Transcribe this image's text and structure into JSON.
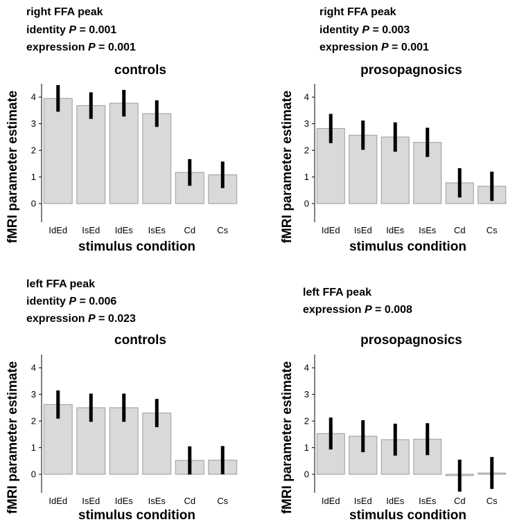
{
  "panels": [
    {
      "stats": [
        {
          "text": "right FFA peak",
          "label": "",
          "value": ""
        },
        {
          "text": "",
          "label": "identity",
          "value": " = 0.001"
        },
        {
          "text": "",
          "label": "expression",
          "value": " = 0.001"
        }
      ]
    },
    {
      "stats": [
        {
          "text": "right FFA peak",
          "label": "",
          "value": ""
        },
        {
          "text": "",
          "label": "identity",
          "value": " = 0.003"
        },
        {
          "text": "",
          "label": "expression",
          "value": " = 0.001"
        }
      ]
    },
    {
      "stats": [
        {
          "text": "left FFA peak",
          "label": "",
          "value": ""
        },
        {
          "text": "",
          "label": "identity",
          "value": " = 0.006"
        },
        {
          "text": "",
          "label": "expression",
          "value": " = 0.023"
        }
      ]
    },
    {
      "stats": [
        {
          "text": "left FFA peak",
          "label": "",
          "value": ""
        },
        {
          "text": "",
          "label": "expression",
          "value": " = 0.008"
        }
      ]
    }
  ],
  "p_symbol": "P",
  "chart_data": [
    {
      "type": "bar",
      "title": "controls",
      "xlabel": "stimulus condition",
      "ylabel": "fMRI parameter estimate",
      "categories": [
        "IdEd",
        "IsEd",
        "IdEs",
        "IsEs",
        "Cd",
        "Cs"
      ],
      "values": [
        3.95,
        3.68,
        3.77,
        3.38,
        1.17,
        1.08
      ],
      "error": [
        0.5,
        0.5,
        0.5,
        0.5,
        0.5,
        0.5
      ],
      "ylim": [
        -0.7,
        4.5
      ],
      "yticks": [
        0,
        1,
        2,
        3,
        4
      ],
      "bar_color": "#d9d9d9",
      "error_color": "#000000"
    },
    {
      "type": "bar",
      "title": "prosopagnosics",
      "xlabel": "stimulus condition",
      "ylabel": "fMRI parameter estimate",
      "categories": [
        "IdEd",
        "IsEd",
        "IdEs",
        "IsEs",
        "Cd",
        "Cs"
      ],
      "values": [
        2.82,
        2.57,
        2.5,
        2.3,
        0.78,
        0.65
      ],
      "error": [
        0.55,
        0.55,
        0.55,
        0.55,
        0.55,
        0.55
      ],
      "ylim": [
        -0.7,
        4.5
      ],
      "yticks": [
        0,
        1,
        2,
        3,
        4
      ],
      "bar_color": "#d9d9d9",
      "error_color": "#000000"
    },
    {
      "type": "bar",
      "title": "controls",
      "xlabel": "stimulus condition",
      "ylabel": "fMRI parameter estimate",
      "categories": [
        "IdEd",
        "IsEd",
        "IdEs",
        "IsEs",
        "Cd",
        "Cs"
      ],
      "values": [
        2.62,
        2.5,
        2.5,
        2.3,
        0.52,
        0.53
      ],
      "error": [
        0.53,
        0.53,
        0.53,
        0.53,
        0.53,
        0.53
      ],
      "ylim": [
        -0.7,
        4.5
      ],
      "yticks": [
        0,
        1,
        2,
        3,
        4
      ],
      "bar_color": "#d9d9d9",
      "error_color": "#000000"
    },
    {
      "type": "bar",
      "title": "prosopagnosics",
      "xlabel": "stimulus condition",
      "ylabel": "fMRI parameter estimate",
      "categories": [
        "IdEd",
        "IsEd",
        "IdEs",
        "IsEs",
        "Cd",
        "Cs"
      ],
      "values": [
        1.53,
        1.43,
        1.3,
        1.32,
        -0.05,
        0.05
      ],
      "error": [
        0.6,
        0.6,
        0.6,
        0.6,
        0.6,
        0.6
      ],
      "ylim": [
        -0.7,
        4.5
      ],
      "yticks": [
        0,
        1,
        2,
        3,
        4
      ],
      "bar_color": "#d9d9d9",
      "error_color": "#000000"
    }
  ]
}
